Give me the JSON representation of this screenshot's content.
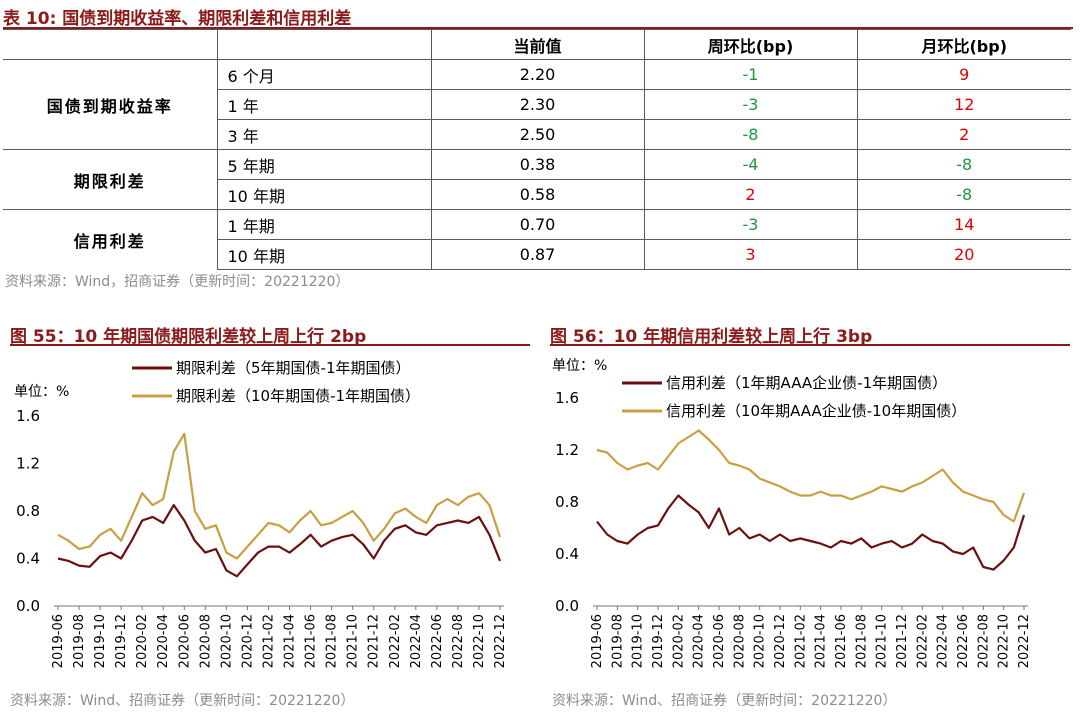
{
  "table_section": {
    "title": "表 10: 国债到期收益率、期限利差和信用利差",
    "headers": [
      "",
      "",
      "当前值",
      "周环比(bp)",
      "月环比(bp)"
    ],
    "groups": [
      {
        "name": "国债到期收益率",
        "rows": [
          {
            "label": "6 个月",
            "current": "2.20",
            "wow": "-1",
            "mom": "9"
          },
          {
            "label": "1 年",
            "current": "2.30",
            "wow": "-3",
            "mom": "12"
          },
          {
            "label": "3 年",
            "current": "2.50",
            "wow": "-8",
            "mom": "2"
          }
        ]
      },
      {
        "name": "期限利差",
        "rows": [
          {
            "label": "5 年期",
            "current": "0.38",
            "wow": "-4",
            "mom": "-8"
          },
          {
            "label": "10 年期",
            "current": "0.58",
            "wow": "2",
            "mom": "-8"
          }
        ]
      },
      {
        "name": "信用利差",
        "rows": [
          {
            "label": "1 年期",
            "current": "0.70",
            "wow": "-3",
            "mom": "14"
          },
          {
            "label": "10 年期",
            "current": "0.87",
            "wow": "3",
            "mom": "20"
          }
        ]
      }
    ],
    "source": "资料来源：Wind，招商证券（更新时间：20221220）"
  },
  "colors": {
    "accent": "#8b1a1a",
    "series_dark": "#6b0f0f",
    "series_gold": "#c8a040",
    "positive": "#e00000",
    "negative": "#1a9a3a"
  },
  "chart_data": [
    {
      "type": "line",
      "title": "图 55：10 年期国债期限利差较上周上行 2bp",
      "unit_label": "单位：%",
      "ylim": [
        0,
        1.6
      ],
      "yticks": [
        "0.0",
        "0.4",
        "0.8",
        "1.2",
        "1.6"
      ],
      "x_tick_labels": [
        "2019-06",
        "2019-08",
        "2019-10",
        "2019-12",
        "2020-02",
        "2020-04",
        "2020-06",
        "2020-08",
        "2020-10",
        "2020-12",
        "2021-02",
        "2021-04",
        "2021-06",
        "2021-08",
        "2021-10",
        "2021-12",
        "2022-02",
        "2022-04",
        "2022-06",
        "2022-08",
        "2022-10",
        "2022-12"
      ],
      "x_months": [
        "2019-06",
        "2019-07",
        "2019-08",
        "2019-09",
        "2019-10",
        "2019-11",
        "2019-12",
        "2020-01",
        "2020-02",
        "2020-03",
        "2020-04",
        "2020-05",
        "2020-06",
        "2020-07",
        "2020-08",
        "2020-09",
        "2020-10",
        "2020-11",
        "2020-12",
        "2021-01",
        "2021-02",
        "2021-03",
        "2021-04",
        "2021-05",
        "2021-06",
        "2021-07",
        "2021-08",
        "2021-09",
        "2021-10",
        "2021-11",
        "2021-12",
        "2022-01",
        "2022-02",
        "2022-03",
        "2022-04",
        "2022-05",
        "2022-06",
        "2022-07",
        "2022-08",
        "2022-09",
        "2022-10",
        "2022-11",
        "2022-12"
      ],
      "series": [
        {
          "name": "期限利差（5年期国债-1年期国债）",
          "color": "#6b0f0f",
          "values": [
            0.4,
            0.38,
            0.34,
            0.33,
            0.42,
            0.45,
            0.4,
            0.55,
            0.72,
            0.75,
            0.7,
            0.85,
            0.72,
            0.55,
            0.45,
            0.48,
            0.3,
            0.25,
            0.35,
            0.45,
            0.5,
            0.5,
            0.45,
            0.52,
            0.6,
            0.5,
            0.55,
            0.58,
            0.6,
            0.52,
            0.4,
            0.55,
            0.65,
            0.68,
            0.62,
            0.6,
            0.68,
            0.7,
            0.72,
            0.7,
            0.75,
            0.6,
            0.38
          ]
        },
        {
          "name": "期限利差（10年期国债-1年期国债）",
          "color": "#c8a040",
          "values": [
            0.6,
            0.55,
            0.48,
            0.5,
            0.6,
            0.65,
            0.55,
            0.75,
            0.95,
            0.85,
            0.9,
            1.3,
            1.45,
            0.8,
            0.65,
            0.68,
            0.45,
            0.4,
            0.5,
            0.6,
            0.7,
            0.68,
            0.62,
            0.72,
            0.8,
            0.68,
            0.7,
            0.75,
            0.8,
            0.7,
            0.55,
            0.65,
            0.78,
            0.82,
            0.75,
            0.7,
            0.85,
            0.9,
            0.85,
            0.92,
            0.95,
            0.85,
            0.58
          ]
        }
      ],
      "source": "资料来源：Wind、招商证券（更新时间：20221220）"
    },
    {
      "type": "line",
      "title": "图 56：10 年期信用利差较上周上行 3bp",
      "unit_label": "单位：%",
      "ylim": [
        0,
        1.6
      ],
      "yticks": [
        "0.0",
        "0.4",
        "0.8",
        "1.2",
        "1.6"
      ],
      "x_tick_labels": [
        "2019-06",
        "2019-08",
        "2019-10",
        "2019-12",
        "2020-02",
        "2020-04",
        "2020-06",
        "2020-08",
        "2020-10",
        "2020-12",
        "2021-02",
        "2021-04",
        "2021-06",
        "2021-08",
        "2021-10",
        "2021-12",
        "2022-02",
        "2022-04",
        "2022-06",
        "2022-08",
        "2022-10",
        "2022-12"
      ],
      "x_months": [
        "2019-06",
        "2019-07",
        "2019-08",
        "2019-09",
        "2019-10",
        "2019-11",
        "2019-12",
        "2020-01",
        "2020-02",
        "2020-03",
        "2020-04",
        "2020-05",
        "2020-06",
        "2020-07",
        "2020-08",
        "2020-09",
        "2020-10",
        "2020-11",
        "2020-12",
        "2021-01",
        "2021-02",
        "2021-03",
        "2021-04",
        "2021-05",
        "2021-06",
        "2021-07",
        "2021-08",
        "2021-09",
        "2021-10",
        "2021-11",
        "2021-12",
        "2022-01",
        "2022-02",
        "2022-03",
        "2022-04",
        "2022-05",
        "2022-06",
        "2022-07",
        "2022-08",
        "2022-09",
        "2022-10",
        "2022-11",
        "2022-12"
      ],
      "series": [
        {
          "name": "信用利差（1年期AAA企业债-1年期国债）",
          "color": "#6b0f0f",
          "values": [
            0.65,
            0.55,
            0.5,
            0.48,
            0.55,
            0.6,
            0.62,
            0.75,
            0.85,
            0.78,
            0.72,
            0.6,
            0.75,
            0.55,
            0.6,
            0.52,
            0.55,
            0.5,
            0.55,
            0.5,
            0.52,
            0.5,
            0.48,
            0.45,
            0.5,
            0.48,
            0.52,
            0.45,
            0.48,
            0.5,
            0.45,
            0.48,
            0.55,
            0.5,
            0.48,
            0.42,
            0.4,
            0.45,
            0.3,
            0.28,
            0.35,
            0.45,
            0.7
          ]
        },
        {
          "name": "信用利差（10年期AAA企业债-10年期国债）",
          "color": "#c8a040",
          "values": [
            1.2,
            1.18,
            1.1,
            1.05,
            1.08,
            1.1,
            1.05,
            1.15,
            1.25,
            1.3,
            1.35,
            1.28,
            1.2,
            1.1,
            1.08,
            1.05,
            0.98,
            0.95,
            0.92,
            0.88,
            0.85,
            0.85,
            0.88,
            0.85,
            0.85,
            0.82,
            0.85,
            0.88,
            0.92,
            0.9,
            0.88,
            0.92,
            0.95,
            1.0,
            1.05,
            0.95,
            0.88,
            0.85,
            0.82,
            0.8,
            0.7,
            0.65,
            0.87
          ]
        }
      ],
      "source": "资料来源：Wind、招商证券（更新时间：20221220）"
    }
  ]
}
